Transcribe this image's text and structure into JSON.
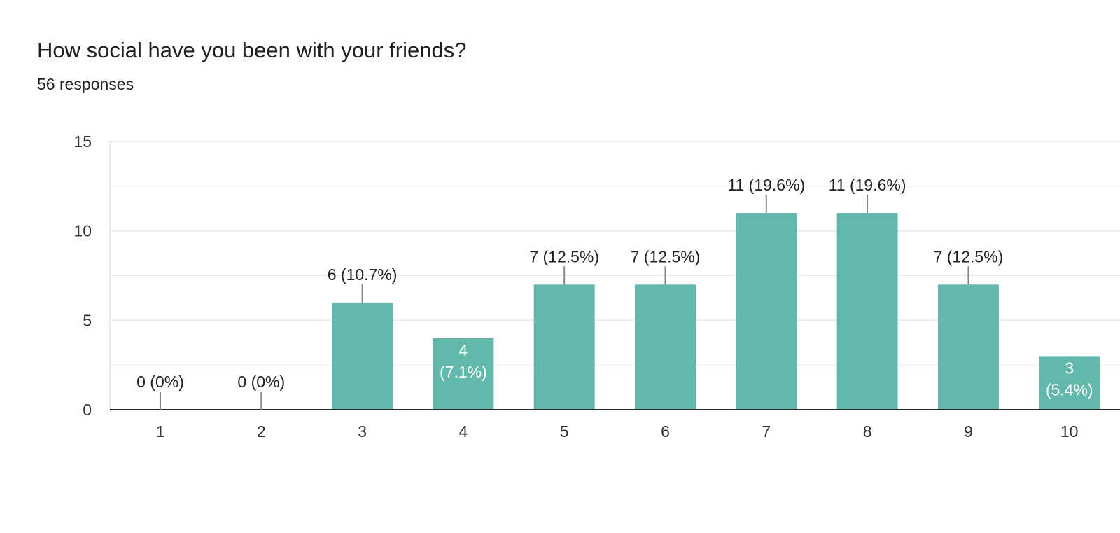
{
  "header": {
    "title": "How social have you been with your friends?",
    "responses": "56 responses"
  },
  "colors": {
    "bar": "#62b8ab",
    "grid": "#ebebeb",
    "axis": "#222222",
    "leader": "#888888"
  },
  "chart_data": {
    "type": "bar",
    "title": "How social have you been with your friends?",
    "xlabel": "",
    "ylabel": "",
    "categories": [
      "1",
      "2",
      "3",
      "4",
      "5",
      "6",
      "7",
      "8",
      "9",
      "10"
    ],
    "values": [
      0,
      0,
      6,
      4,
      7,
      7,
      11,
      11,
      7,
      3
    ],
    "labels": [
      "0 (0%)",
      "0 (0%)",
      "6 (10.7%)",
      "4 (7.1%)",
      "7 (12.5%)",
      "7 (12.5%)",
      "11 (19.6%)",
      "11 (19.6%)",
      "7 (12.5%)",
      "3 (5.4%)"
    ],
    "ylim": [
      0,
      15
    ],
    "yticks": [
      0,
      5,
      10,
      15
    ],
    "grid": true,
    "legend": "none"
  }
}
